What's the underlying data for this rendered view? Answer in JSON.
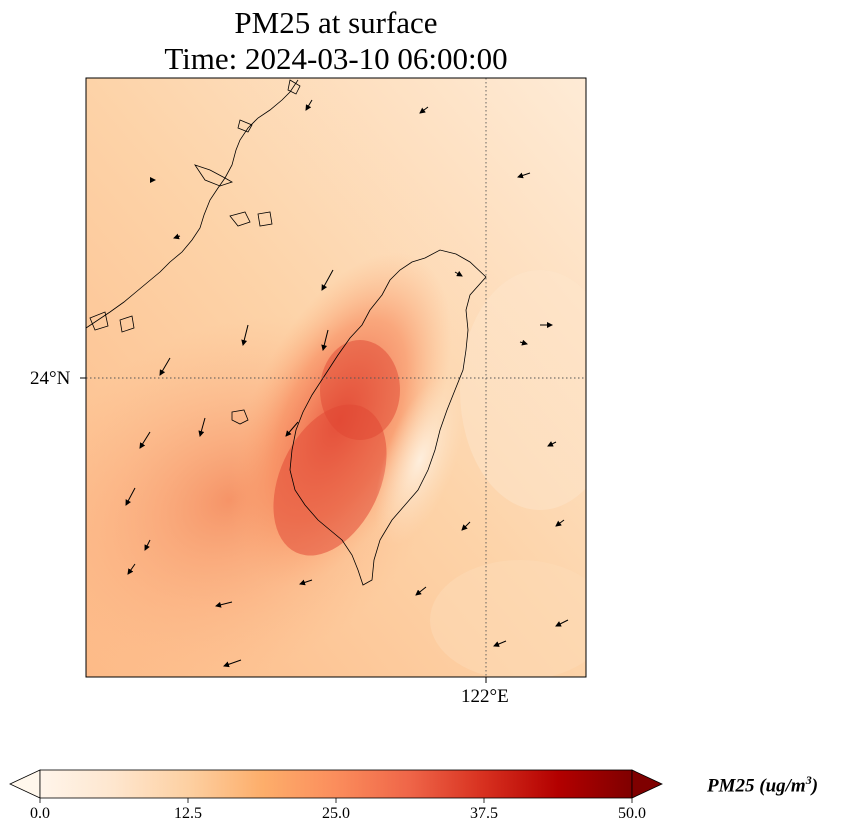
{
  "title_line1": "PM25 at surface",
  "title_line2": "Time: 2024-03-10 06:00:00",
  "axes": {
    "lat_label": "24°N",
    "lon_label": "122°E",
    "lat_grid": 24,
    "lon_grid": 122
  },
  "colorbar": {
    "title_prefix": "PM25 (ug/m",
    "title_sup": "3",
    "title_suffix": ")",
    "ticks": [
      "0.0",
      "12.5",
      "25.0",
      "37.5",
      "50.0"
    ],
    "min": 0,
    "max": 50,
    "extend": "both",
    "colormap": [
      "#fff5eb",
      "#fee6ce",
      "#fdd0a2",
      "#fdae6b",
      "#fd8d3c",
      "#f16913",
      "#d94801",
      "#a63603",
      "#7f2704"
    ]
  }
}
